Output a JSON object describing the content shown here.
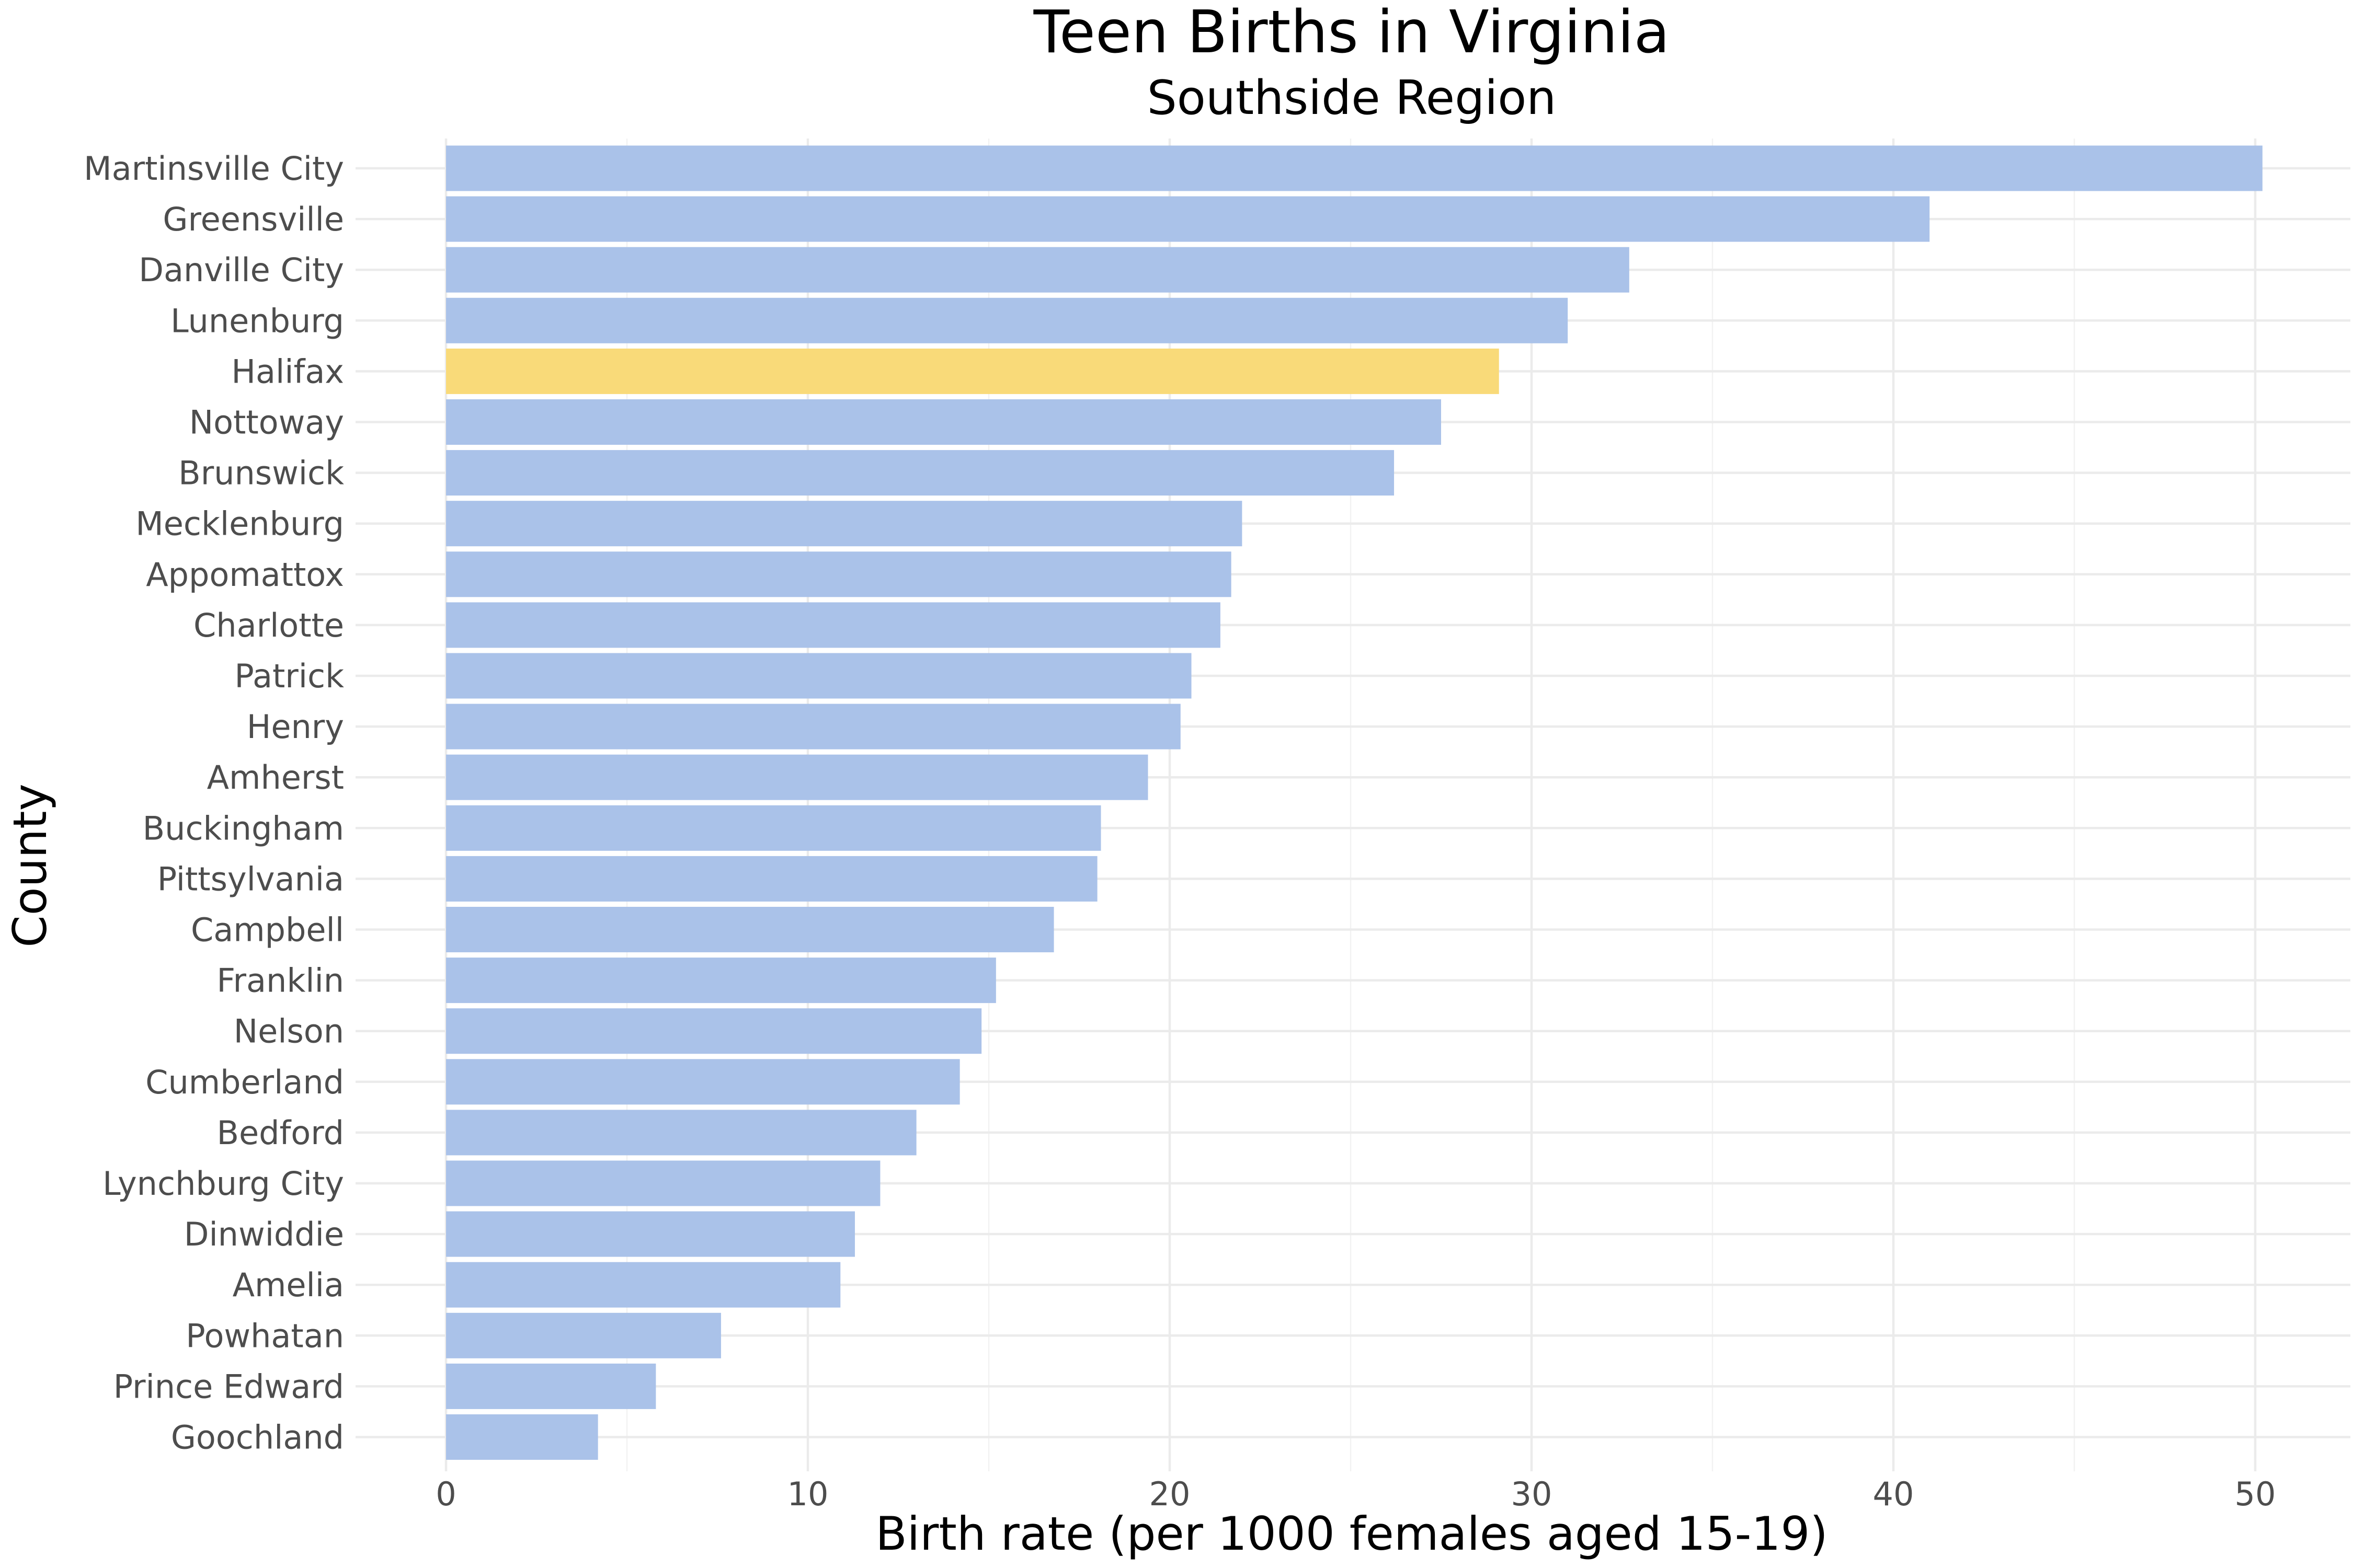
{
  "chart_data": {
    "type": "bar",
    "orientation": "horizontal",
    "title": "Teen Births in Virginia",
    "subtitle": "Southside Region",
    "xlabel": "Birth rate (per 1000 females aged 15-19)",
    "ylabel": "County",
    "xlim": [
      0,
      52
    ],
    "xticks": [
      0,
      10,
      20,
      30,
      40,
      50
    ],
    "grid": true,
    "categories": [
      "Martinsville City",
      "Greensville",
      "Danville City",
      "Lunenburg",
      "Halifax",
      "Nottoway",
      "Brunswick",
      "Mecklenburg",
      "Appomattox",
      "Charlotte",
      "Patrick",
      "Henry",
      "Amherst",
      "Buckingham",
      "Pittsylvania",
      "Campbell",
      "Franklin",
      "Nelson",
      "Cumberland",
      "Bedford",
      "Lynchburg City",
      "Dinwiddie",
      "Amelia",
      "Powhatan",
      "Prince Edward",
      "Goochland"
    ],
    "values": [
      50.2,
      41.0,
      32.7,
      31.0,
      29.1,
      27.5,
      26.2,
      22.0,
      21.7,
      21.4,
      20.6,
      20.3,
      19.4,
      18.1,
      18.0,
      16.8,
      15.2,
      14.8,
      14.2,
      13.0,
      12.0,
      11.3,
      10.9,
      7.6,
      5.8,
      4.2
    ],
    "highlight": "Halifax",
    "colors": {
      "bar": "#aac2e9",
      "highlight": "#f9da79"
    }
  }
}
